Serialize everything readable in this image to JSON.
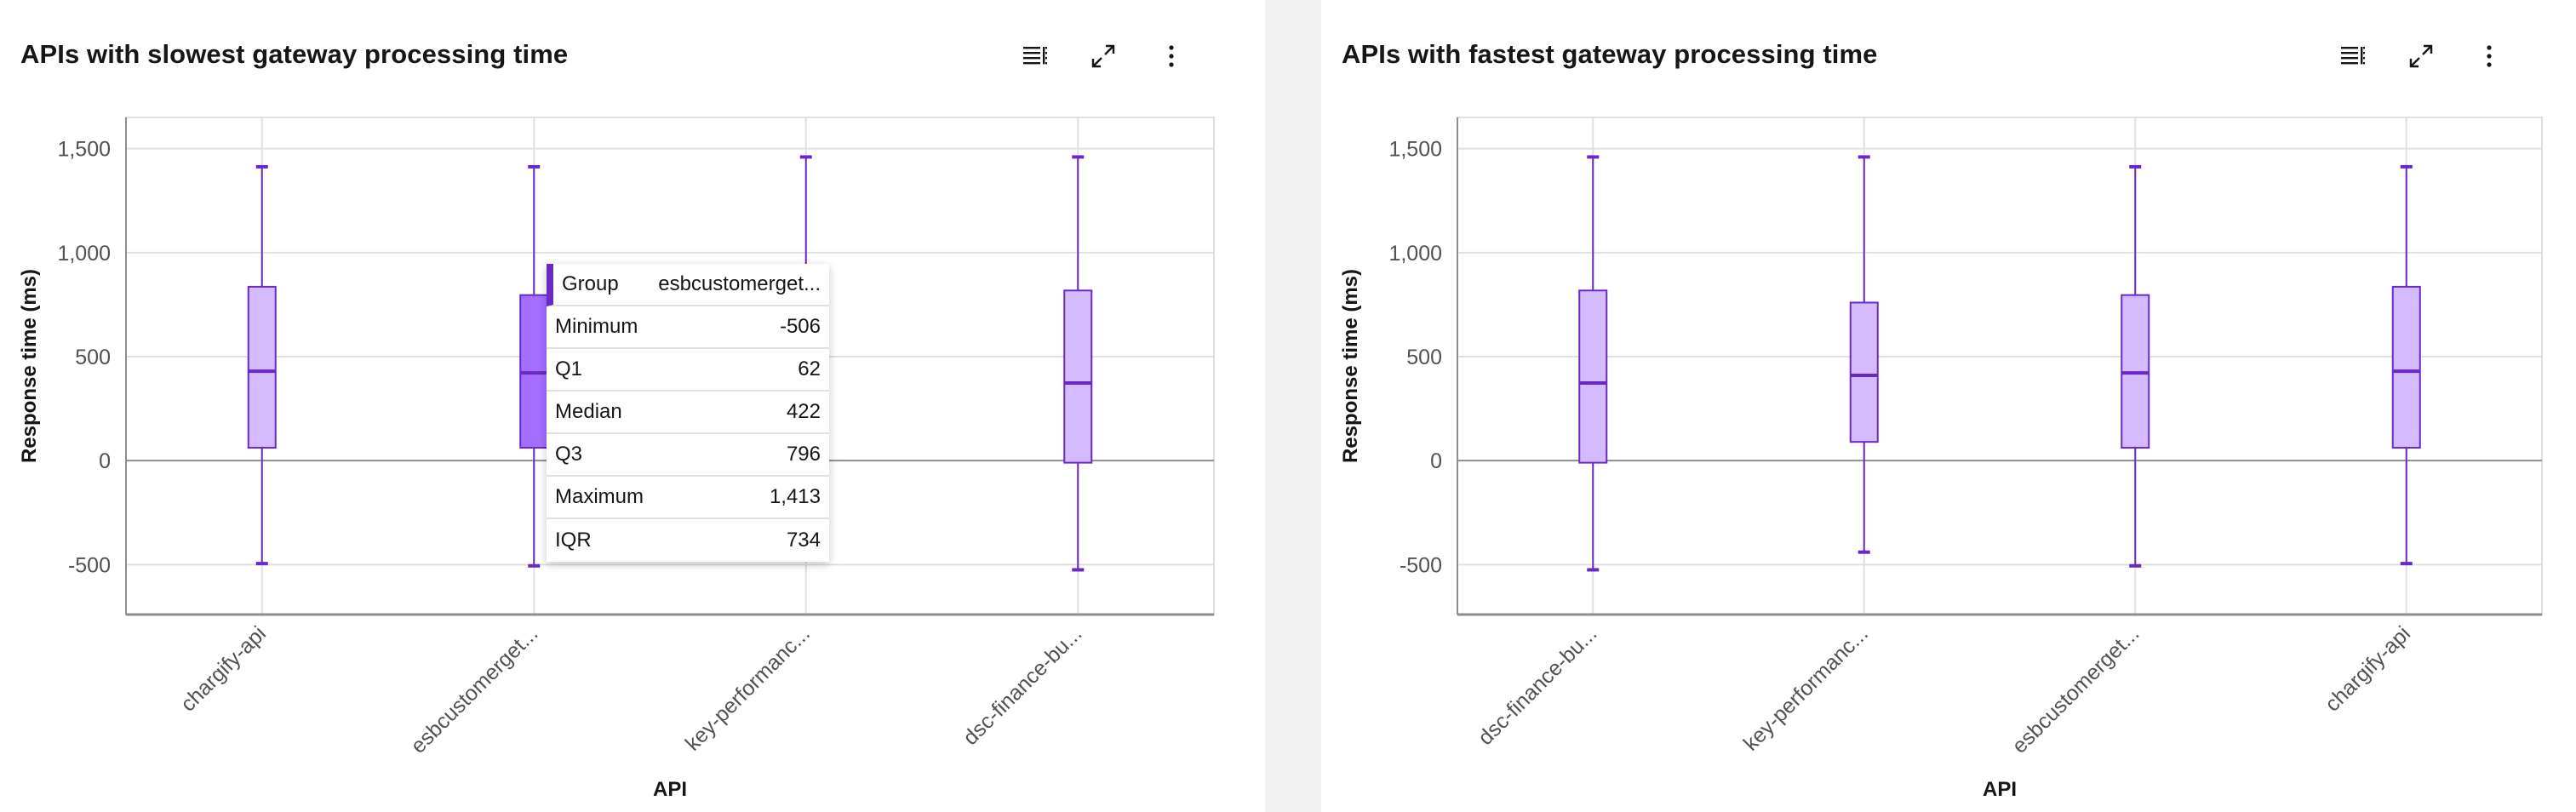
{
  "colors": {
    "box_fill": "#d4bbff",
    "box_fill_hover": "#a56eff",
    "box_stroke": "#6929c4",
    "grid": "#e0e0e0",
    "axis": "#8d8d8d",
    "zero_line": "#8d8d8d"
  },
  "toolbar": {
    "icons": [
      "table-view-icon",
      "maximize-icon",
      "overflow-menu-icon"
    ]
  },
  "chart_data": [
    {
      "type": "box",
      "title": "APIs with slowest gateway processing time",
      "xlabel": "API",
      "ylabel": "Response time (ms)",
      "ylim": [
        -740,
        1650
      ],
      "yticks": [
        1500,
        1000,
        500,
        0,
        -500
      ],
      "ytick_labels": [
        "1,500",
        "1,000",
        "500",
        "0",
        "-500"
      ],
      "grid": true,
      "categories": [
        "chargify-api",
        "esbcustomerget...",
        "key-performanc...",
        "dsc-finance-bu..."
      ],
      "boxes": [
        {
          "min": -495,
          "q1": 62,
          "median": 430,
          "q3": 836,
          "max": 1413
        },
        {
          "min": -506,
          "q1": 62,
          "median": 422,
          "q3": 796,
          "max": 1413,
          "highlighted": true
        },
        {
          "min": -440,
          "q1": 90,
          "median": 410,
          "q3": 760,
          "max": 1460
        },
        {
          "min": -525,
          "q1": -10,
          "median": 373,
          "q3": 818,
          "max": 1460
        }
      ],
      "tooltip": {
        "rows": [
          {
            "label": "Group",
            "value": "esbcustomerget..."
          },
          {
            "label": "Minimum",
            "value": "-506"
          },
          {
            "label": "Q1",
            "value": "62"
          },
          {
            "label": "Median",
            "value": "422"
          },
          {
            "label": "Q3",
            "value": "796"
          },
          {
            "label": "Maximum",
            "value": "1,413"
          },
          {
            "label": "IQR",
            "value": "734"
          }
        ]
      }
    },
    {
      "type": "box",
      "title": "APIs with fastest gateway processing time",
      "xlabel": "API",
      "ylabel": "Response time (ms)",
      "ylim": [
        -740,
        1650
      ],
      "yticks": [
        1500,
        1000,
        500,
        0,
        -500
      ],
      "ytick_labels": [
        "1,500",
        "1,000",
        "500",
        "0",
        "-500"
      ],
      "grid": true,
      "categories": [
        "dsc-finance-bu...",
        "key-performanc...",
        "esbcustomerget...",
        "chargify-api"
      ],
      "boxes": [
        {
          "min": -525,
          "q1": -10,
          "median": 373,
          "q3": 818,
          "max": 1460
        },
        {
          "min": -440,
          "q1": 90,
          "median": 410,
          "q3": 760,
          "max": 1460
        },
        {
          "min": -506,
          "q1": 62,
          "median": 422,
          "q3": 796,
          "max": 1413
        },
        {
          "min": -495,
          "q1": 62,
          "median": 430,
          "q3": 836,
          "max": 1413
        }
      ]
    }
  ]
}
